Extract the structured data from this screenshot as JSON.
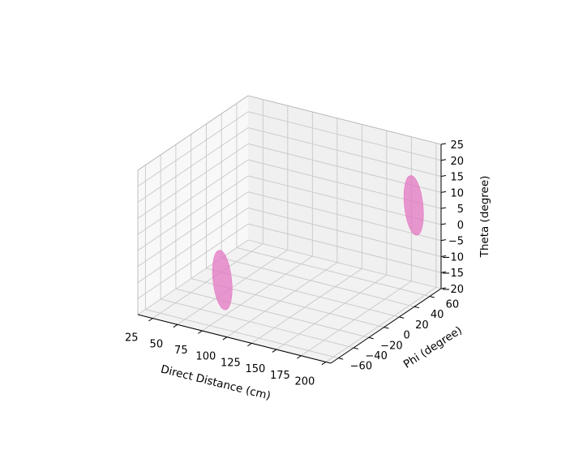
{
  "chart_data": {
    "type": "scatter",
    "projection": "3d",
    "title": "",
    "xlabel": "Direct Distance (cm)",
    "ylabel": "Phi (degree)",
    "zlabel": "Theta (degree)",
    "xlim": [
      10,
      205
    ],
    "ylim": [
      -70,
      75
    ],
    "zlim": [
      -20,
      25
    ],
    "xticks": [
      25,
      50,
      75,
      100,
      125,
      150,
      175,
      200
    ],
    "yticks": [
      -60,
      -40,
      -20,
      0,
      20,
      40,
      60
    ],
    "zticks": [
      -20,
      -15,
      -10,
      -5,
      0,
      5,
      10,
      15,
      20,
      25
    ],
    "xtick_labels": [
      "25",
      "50",
      "75",
      "100",
      "125",
      "150",
      "175",
      "200"
    ],
    "ytick_labels": [
      "−60",
      "−40",
      "−20",
      "0",
      "20",
      "40",
      "60"
    ],
    "ztick_labels": [
      "−20",
      "−15",
      "−10",
      "−5",
      "0",
      "5",
      "10",
      "15",
      "20",
      "25"
    ],
    "grid": true,
    "series": [
      {
        "marker": "ellipsoid",
        "color": "#e377c2",
        "points": [
          {
            "x": 80,
            "y": -50,
            "z": -7
          },
          {
            "x": 185,
            "y": 65,
            "z": 6
          }
        ]
      }
    ]
  }
}
